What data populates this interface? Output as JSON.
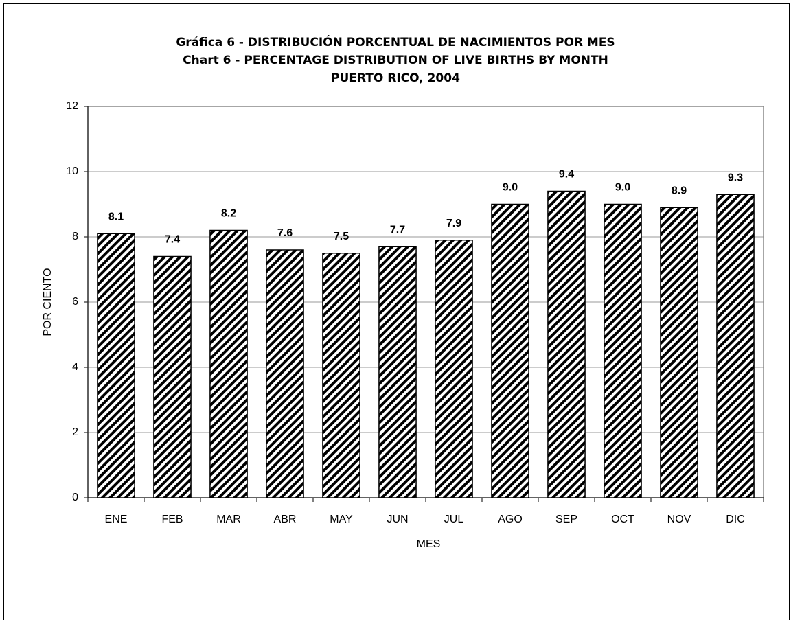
{
  "chart_data": {
    "type": "bar",
    "title": [
      "Gráfica 6 - DISTRIBUCIÓN PORCENTUAL DE NACIMIENTOS POR MES",
      "Chart 6 - PERCENTAGE DISTRIBUTION OF LIVE BIRTHS BY MONTH",
      "PUERTO RICO, 2004"
    ],
    "x_label": "MES",
    "y_label": "POR CIENTO",
    "categories": [
      "ENE",
      "FEB",
      "MAR",
      "ABR",
      "MAY",
      "JUN",
      "JUL",
      "AGO",
      "SEP",
      "OCT",
      "NOV",
      "DIC"
    ],
    "values": [
      8.1,
      7.4,
      8.2,
      7.6,
      7.5,
      7.7,
      7.9,
      9.0,
      9.4,
      9.0,
      8.9,
      9.3
    ],
    "value_labels": [
      "8.1",
      "7.4",
      "8.2",
      "7.6",
      "7.5",
      "7.7",
      "7.9",
      "9.0",
      "9.4",
      "9.0",
      "8.9",
      "9.3"
    ],
    "color": "#000000",
    "ylim": [
      0,
      12
    ],
    "yticks": [
      0,
      2,
      4,
      6,
      8,
      10,
      12
    ],
    "grid": true
  }
}
